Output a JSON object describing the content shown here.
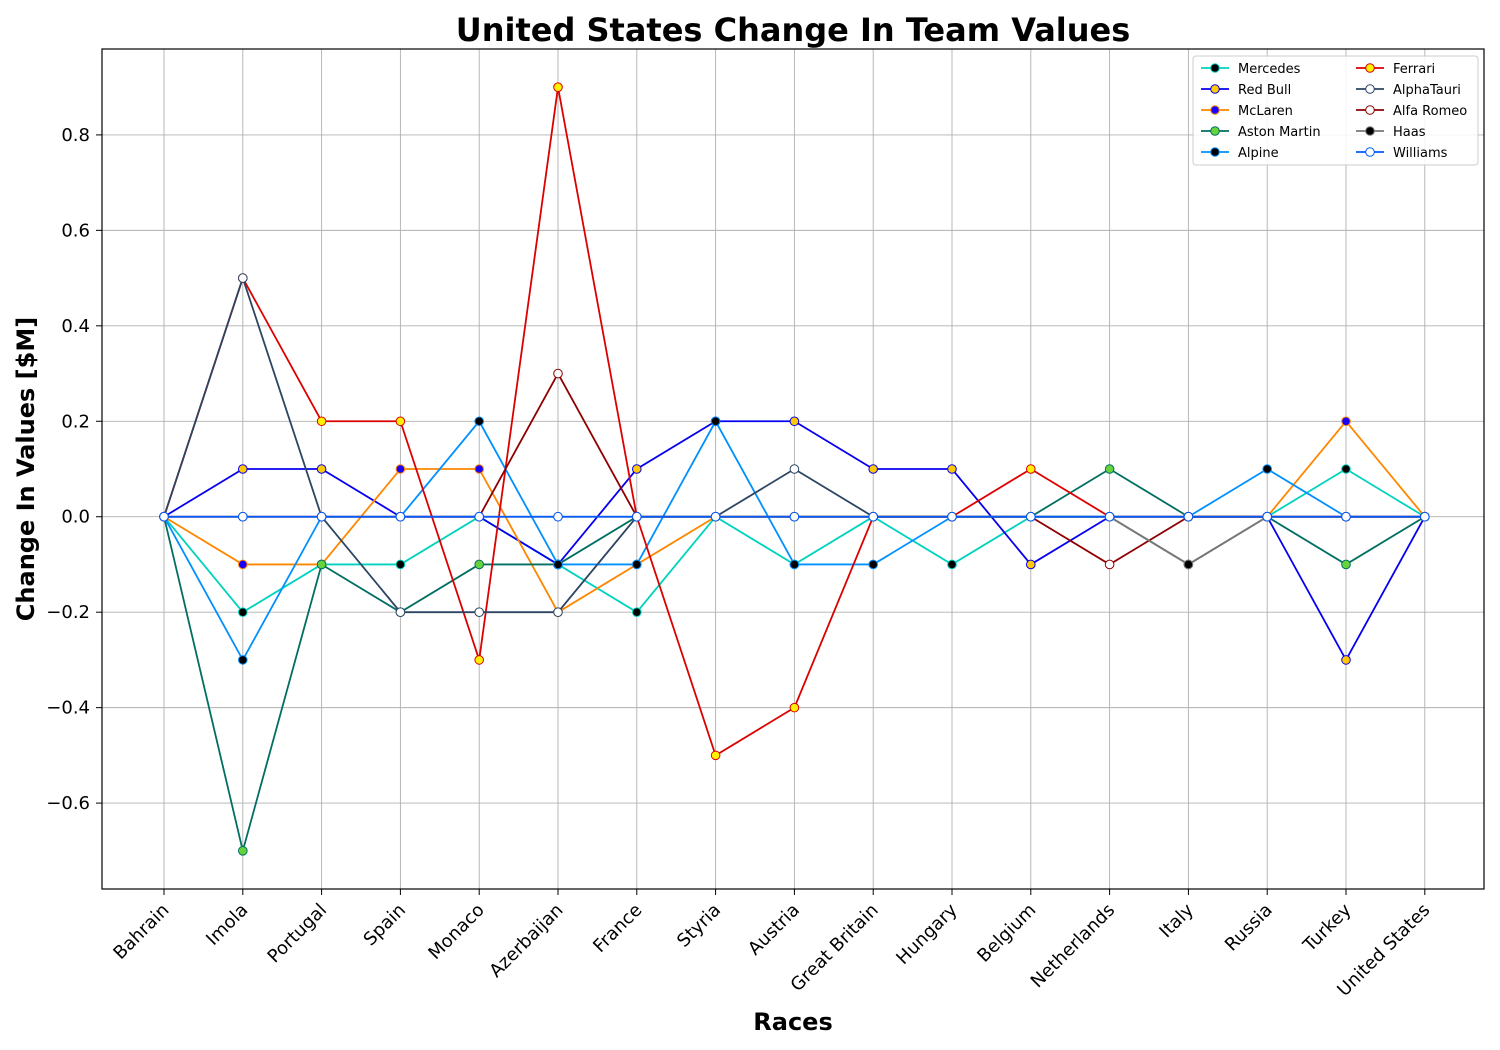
{
  "chart_data": {
    "type": "line",
    "title": "United States Change In Team Values",
    "xlabel": "Races",
    "ylabel": "Change In Values [$M]",
    "ylim": [
      -0.78,
      0.98
    ],
    "yticks": [
      -0.6,
      -0.4,
      -0.2,
      0.0,
      0.2,
      0.4,
      0.6,
      0.8
    ],
    "ytick_labels": [
      "−0.6",
      "−0.4",
      "−0.2",
      "0.0",
      "0.2",
      "0.4",
      "0.6",
      "0.8"
    ],
    "grid": true,
    "legend_position": "top-right",
    "categories": [
      "Bahrain",
      "Imola",
      "Portugal",
      "Spain",
      "Monaco",
      "Azerbaijan",
      "France",
      "Styria",
      "Austria",
      "Great Britain",
      "Hungary",
      "Belgium",
      "Netherlands",
      "Italy",
      "Russia",
      "Turkey",
      "United States"
    ],
    "series": [
      {
        "name": "Mercedes",
        "color": "#00d2be",
        "marker": "#000000",
        "values": [
          0,
          -0.2,
          -0.1,
          -0.1,
          0,
          -0.1,
          -0.2,
          0,
          -0.1,
          0,
          -0.1,
          0,
          0,
          0,
          0,
          0.1,
          0
        ]
      },
      {
        "name": "Red Bull",
        "color": "#0600ef",
        "marker": "#ffc906",
        "values": [
          0,
          0.1,
          0.1,
          0,
          0,
          -0.1,
          0.1,
          0.2,
          0.2,
          0.1,
          0.1,
          -0.1,
          0,
          0,
          0,
          -0.3,
          0
        ]
      },
      {
        "name": "McLaren",
        "color": "#ff8700",
        "marker": "#1a00ff",
        "values": [
          0,
          -0.1,
          -0.1,
          0.1,
          0.1,
          -0.2,
          -0.1,
          0,
          0,
          0,
          0,
          0,
          0,
          0,
          0,
          0.2,
          0
        ]
      },
      {
        "name": "Aston Martin",
        "color": "#006f62",
        "marker": "#67d33b",
        "values": [
          0,
          -0.7,
          -0.1,
          -0.2,
          -0.1,
          -0.1,
          0,
          0,
          0,
          0,
          0,
          0,
          0.1,
          0,
          0,
          -0.1,
          0
        ]
      },
      {
        "name": "Alpine",
        "color": "#0090ff",
        "marker": "#000000",
        "values": [
          0,
          -0.3,
          0,
          0,
          0.2,
          -0.1,
          -0.1,
          0.2,
          -0.1,
          -0.1,
          0,
          0,
          0,
          0,
          0.1,
          0,
          0
        ]
      },
      {
        "name": "Ferrari",
        "color": "#dc0000",
        "marker": "#fff200",
        "values": [
          0,
          0.5,
          0.2,
          0.2,
          -0.3,
          0.9,
          0,
          -0.5,
          -0.4,
          0,
          0,
          0.1,
          0,
          0,
          0,
          0,
          0
        ]
      },
      {
        "name": "AlphaTauri",
        "color": "#2b4562",
        "marker": "#ffffff",
        "values": [
          0,
          0.5,
          0,
          -0.2,
          -0.2,
          -0.2,
          0,
          0,
          0.1,
          0,
          0,
          0,
          0,
          -0.1,
          0,
          0,
          0
        ]
      },
      {
        "name": "Alfa Romeo",
        "color": "#900000",
        "marker": "#ffffff",
        "values": [
          0,
          0,
          0,
          0,
          0,
          0.3,
          0,
          0,
          0,
          0,
          0,
          0,
          -0.1,
          0,
          0,
          0,
          0
        ]
      },
      {
        "name": "Haas",
        "color": "#787878",
        "marker": "#000000",
        "values": [
          0,
          0,
          0,
          0,
          0,
          0,
          0,
          0,
          0,
          0,
          0,
          0,
          0,
          -0.1,
          0,
          0,
          0
        ]
      },
      {
        "name": "Williams",
        "color": "#005aff",
        "marker": "#ffffff",
        "values": [
          0,
          0,
          0,
          0,
          0,
          0,
          0,
          0,
          0,
          0,
          0,
          0,
          0,
          0,
          0,
          0,
          0
        ]
      }
    ]
  }
}
